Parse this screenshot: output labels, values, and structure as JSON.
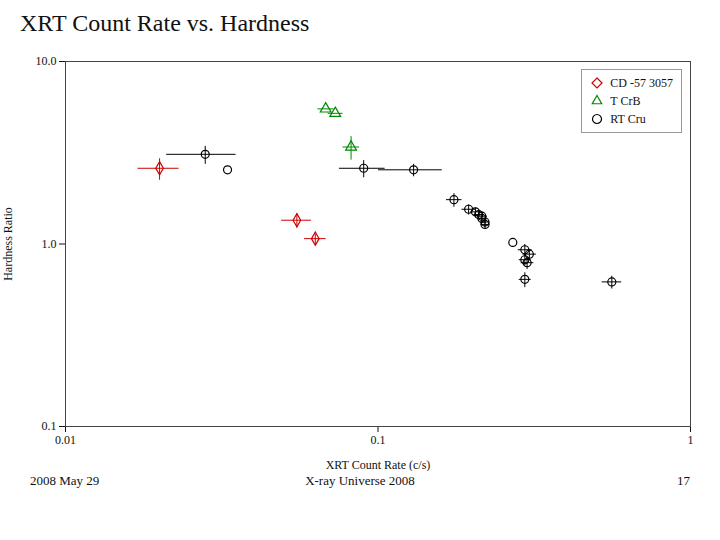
{
  "chart_data": {
    "type": "scatter",
    "title": "XRT Count Rate vs. Hardness",
    "x_label": "XRT Count Rate (c/s)",
    "y_label": "Hardness Ratio",
    "log": true,
    "xlim": [
      0.01,
      1.0
    ],
    "ylim": [
      0.1,
      10.0
    ],
    "xticks": [
      0.01,
      0.1,
      1
    ],
    "yticks": [
      0.1,
      {
        "value": 1,
        "label": "1.0"
      },
      {
        "value": 10,
        "label": "10.0"
      }
    ],
    "grid": false,
    "legend": "upper right",
    "annotations": [
      "2008 May 29",
      "X-ray Universe 2008",
      "17"
    ],
    "series": [
      {
        "name": "CD -57 3057",
        "color": "#cc0000",
        "marker": "diamond",
        "x": [
          0.02,
          0.055,
          0.063
        ],
        "y": [
          2.6,
          1.35,
          1.07
        ],
        "xerr": [
          0.003,
          0.006,
          0.005
        ],
        "yerr": [
          0.35,
          0.12,
          0.07
        ]
      },
      {
        "name": "T CrB",
        "color": "#008800",
        "marker": "triangle",
        "x": [
          0.068,
          0.073,
          0.082
        ],
        "y": [
          5.5,
          5.2,
          3.4
        ],
        "xerr": [
          0.004,
          0.004,
          0.005
        ],
        "yerr": [
          0.0,
          0.0,
          0.5
        ]
      },
      {
        "name": "RT Cru",
        "color": "#000000",
        "marker": "circle",
        "x": [
          0.028,
          0.033,
          0.09,
          0.13,
          0.175,
          0.195,
          0.205,
          0.21,
          0.215,
          0.215,
          0.22,
          0.22,
          0.27,
          0.295,
          0.305,
          0.295,
          0.3,
          0.295,
          0.56
        ],
        "y": [
          3.1,
          2.55,
          2.6,
          2.55,
          1.75,
          1.55,
          1.5,
          1.45,
          1.42,
          1.38,
          1.32,
          1.28,
          1.02,
          0.93,
          0.88,
          0.82,
          0.79,
          0.64,
          0.62
        ],
        "xerr": [
          0.007,
          0.0,
          0.015,
          0.03,
          0.01,
          0.01,
          0.008,
          0.008,
          0.008,
          0.007,
          0.007,
          0.007,
          0.0,
          0.015,
          0.015,
          0.013,
          0.014,
          0.013,
          0.04
        ],
        "yerr": [
          0.35,
          0.0,
          0.28,
          0.2,
          0.15,
          0.1,
          0.09,
          0.09,
          0.08,
          0.08,
          0.08,
          0.07,
          0.0,
          0.07,
          0.06,
          0.06,
          0.06,
          0.06,
          0.05
        ]
      }
    ]
  }
}
